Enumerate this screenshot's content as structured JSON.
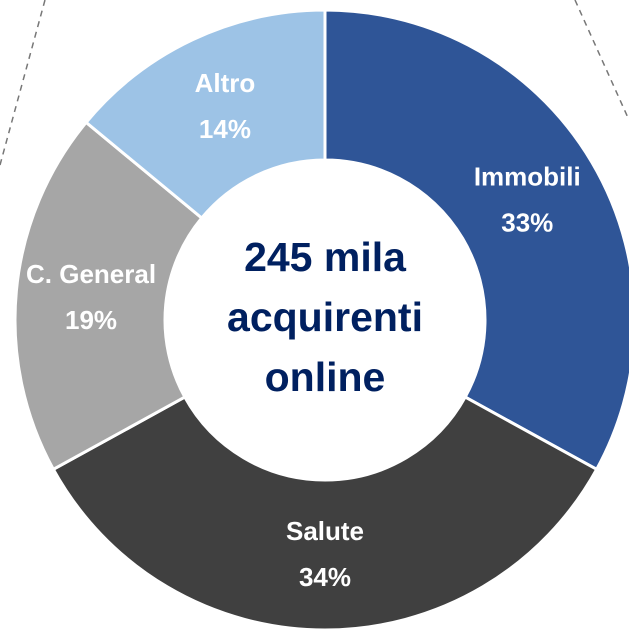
{
  "chart_data": {
    "type": "donut",
    "categories": [
      "Immobili",
      "Salute",
      "C. General",
      "Altro"
    ],
    "values": [
      33,
      34,
      19,
      14
    ],
    "value_labels": [
      "33%",
      "34%",
      "19%",
      "14%"
    ],
    "colors": [
      "#2f5597",
      "#404040",
      "#a6a6a6",
      "#9dc3e6"
    ],
    "center_text": [
      "245 mila",
      "acquirenti",
      "online"
    ]
  }
}
